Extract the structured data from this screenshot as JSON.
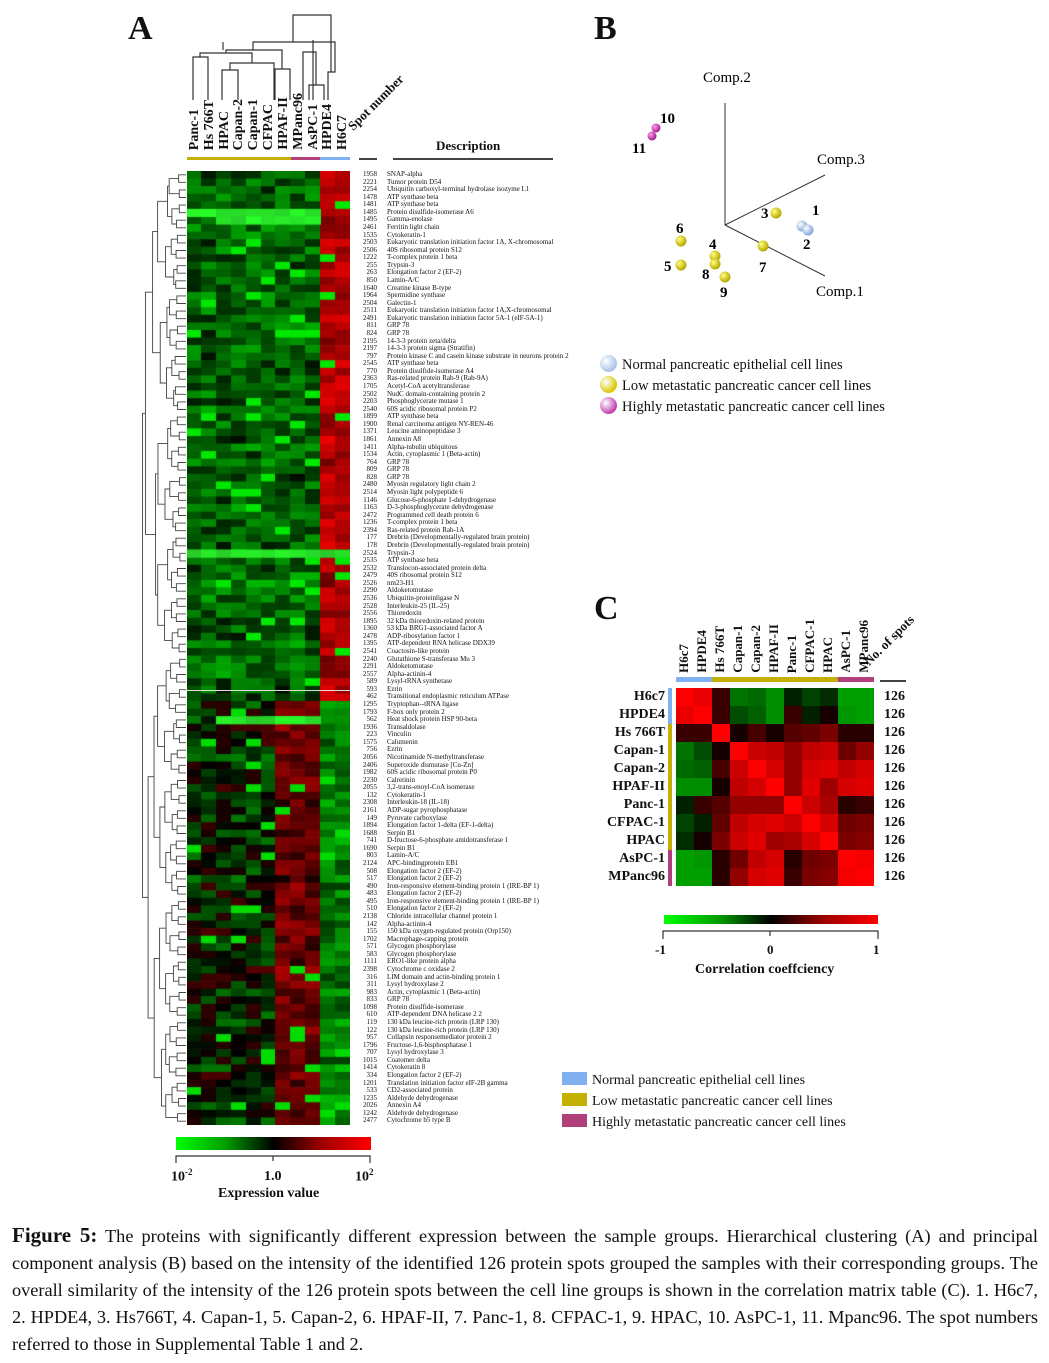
{
  "panel_a": {
    "letter": "A",
    "columns": [
      "Panc-1",
      "Hs 766T",
      "HPAC",
      "Capan-2",
      "Capan-1",
      "CFPAC",
      "HPAF-II",
      "MPanc96",
      "AsPC-1",
      "HPDE4",
      "H6C7"
    ],
    "column_groups": [
      "low",
      "low",
      "low",
      "low",
      "low",
      "low",
      "low",
      "high",
      "high",
      "normal",
      "normal"
    ],
    "spot_header": "Spot number",
    "description_header": "Description",
    "spots": [
      [
        "1958",
        "SNAP-alpha"
      ],
      [
        "2221",
        "Tumor protein D54"
      ],
      [
        "2254",
        "Ubiquitin carboxyl-terminal hydrolase isozyme L1"
      ],
      [
        "1478",
        "ATP synthase beta"
      ],
      [
        "1481",
        "ATP synthase beta"
      ],
      [
        "1485",
        "Protein disulfide-isomerase A6"
      ],
      [
        "1495",
        "Gamma-enolase"
      ],
      [
        "2461",
        "Ferritin light chain"
      ],
      [
        "1535",
        "Cytokeratin-1"
      ],
      [
        "2503",
        "Eukaryotic translation initiation factor 1A, X-chromosomal"
      ],
      [
        "2506",
        "40S ribosomal protein S12"
      ],
      [
        "1222",
        "T-complex protein 1 beta"
      ],
      [
        "255",
        "Trypsin-3"
      ],
      [
        "263",
        "Elongation factor 2 (EF-2)"
      ],
      [
        "850",
        "Lamin-A/C"
      ],
      [
        "1640",
        "Creatine kinase B-type"
      ],
      [
        "1964",
        "Spermidine synthase"
      ],
      [
        "2504",
        "Galectin-1"
      ],
      [
        "2511",
        "Eukaryotic translation initiation factor 1A,X-chromosomal"
      ],
      [
        "2491",
        "Eukaryotic translation initiation factor 5A-1 (eIF-5A-1)"
      ],
      [
        "811",
        "GRP 78"
      ],
      [
        "824",
        "GRP 78"
      ],
      [
        "2195",
        "14-3-3 protein zeta/delta"
      ],
      [
        "2197",
        "14-3-3 protein sigma (Stratifin)"
      ],
      [
        "797",
        "Protein kinase C and casein kinase substrate in neurons protein 2"
      ],
      [
        "2545",
        "ATP synthase beta"
      ],
      [
        "770",
        "Protein disulfide-isomerase A4"
      ],
      [
        "2363",
        "Ras-related protein Rab-9 (Rab-9A)"
      ],
      [
        "1705",
        "Acetyl-CoA acetyltransferase"
      ],
      [
        "2502",
        "NudC domain-containing protein 2"
      ],
      [
        "2203",
        "Phosphoglycerate mutase 1"
      ],
      [
        "2540",
        "60S acidic ribosomal protein P2"
      ],
      [
        "1899",
        "ATP synthase beta"
      ],
      [
        "1900",
        "Renal carcinoma antigen NY-REN-46"
      ],
      [
        "1371",
        "Leucine aminopeptidase 3"
      ],
      [
        "1861",
        "Annexin A8"
      ],
      [
        "1411",
        "Alpha-tubulin ubiquitous"
      ],
      [
        "1534",
        "Actin, cytoplasmic 1 (Beta-actin)"
      ],
      [
        "764",
        "GRP 78"
      ],
      [
        "809",
        "GRP 78"
      ],
      [
        "828",
        "GRP 78"
      ],
      [
        "2480",
        "Myosin regulatory light chain 2"
      ],
      [
        "2514",
        "Myosin light polypeptide 6"
      ],
      [
        "1146",
        "Glucose-6-phosphate 1-dehydrogenase"
      ],
      [
        "1163",
        "D-3-phosphoglycerate dehydrogenase"
      ],
      [
        "2472",
        "Programmed cell death protein 6"
      ],
      [
        "1236",
        "T-complex protein 1 beta"
      ],
      [
        "2394",
        "Ras-related protein Rab-1A"
      ],
      [
        "177",
        "Drebrin (Developmentally-regulated brain protein)"
      ],
      [
        "178",
        "Drebrin (Developmentally-regulated brain protein)"
      ],
      [
        "2524",
        "Trypsin-3"
      ],
      [
        "2535",
        "ATP synthase beta"
      ],
      [
        "2532",
        "Translocon-associated protein delta"
      ],
      [
        "2479",
        "40S ribosomal protein S12"
      ],
      [
        "2526",
        "nm23-H1"
      ],
      [
        "2290",
        "Aldoketomutase"
      ],
      [
        "2536",
        "Ubiquitin-proteinligase N"
      ],
      [
        "2528",
        "Interleukin-25 (IL-25)"
      ],
      [
        "2556",
        "Thioredoxin"
      ],
      [
        "1895",
        "32 kDa thioredoxin-related protein"
      ],
      [
        "1360",
        "53 kDa BRG1-associated factor A"
      ],
      [
        "2478",
        "ADP-ribosylation factor 1"
      ],
      [
        "1395",
        "ATP-dependent RNA helicase DDX39"
      ],
      [
        "2541",
        "Coactosin-like protein"
      ],
      [
        "2240",
        "Glutathione S-transferase Mu 3"
      ],
      [
        "2291",
        "Aldoketomutase"
      ],
      [
        "2557",
        "Alpha-actinin-4"
      ],
      [
        "589",
        "Lysyl-tRNA synthetase"
      ],
      [
        "593",
        "Ezrin"
      ],
      [
        "462",
        "Transitional endoplasmic reticulum ATPase"
      ],
      [
        "1295",
        "Tryptophan--tRNA ligase"
      ],
      [
        "1793",
        "F-box only protein 2"
      ],
      [
        "562",
        "Heat shock protein HSP 90-beta"
      ],
      [
        "1936",
        "Transaldolase"
      ],
      [
        "223",
        "Vinculin"
      ],
      [
        "1575",
        "Calumenin"
      ],
      [
        "756",
        "Ezrin"
      ],
      [
        "2056",
        "Nicotinamide N-methyltransferase"
      ],
      [
        "2406",
        "Superoxide dismutase [Cu-Zn]"
      ],
      [
        "1982",
        "60S acidic ribosomal protein P0"
      ],
      [
        "2230",
        "Calretinin"
      ],
      [
        "2055",
        "3,2-trans-enoyl-CoA isomerase"
      ],
      [
        "132",
        "Cytokeratin-1"
      ],
      [
        "2308",
        "Interleukin-18 (IL-18)"
      ],
      [
        "2161",
        "ADP-sugar pyrophosphatase"
      ],
      [
        "149",
        "Pyruvate carboxylase"
      ],
      [
        "1894",
        "Elongation factor 1-delta (EF-1-delta)"
      ],
      [
        "1688",
        "Serpin B1"
      ],
      [
        "741",
        "D-fructose-6-phosphate amidotransferase 1"
      ],
      [
        "1690",
        "Serpin B1"
      ],
      [
        "803",
        "Lamin-A/C"
      ],
      [
        "2124",
        "APC-bindingprotein EB1"
      ],
      [
        "508",
        "Elongation factor 2 (EF-2)"
      ],
      [
        "517",
        "Elongation factor 2 (EF-2)"
      ],
      [
        "490",
        "Iron-responsive element-binding protein 1 (IRE-BP 1)"
      ],
      [
        "483",
        "Elongation factor 2 (EF-2)"
      ],
      [
        "495",
        "Iron-responsive element-binding protein 1 (IRE-BP 1)"
      ],
      [
        "510",
        "Elongation factor 2 (EF-2)"
      ],
      [
        "2138",
        "Chloride intracellular channel protein 1"
      ],
      [
        "142",
        "Alpha-actinin-4"
      ],
      [
        "155",
        "150 kDa oxygen-regulated protein (Orp150)"
      ],
      [
        "1702",
        "Macrophage-capping protein"
      ],
      [
        "571",
        "Glycogen phosphorylase"
      ],
      [
        "583",
        "Glycogen phosphorylase"
      ],
      [
        "1111",
        "ERO1-like protein alpha"
      ],
      [
        "2398",
        "Cytochrome c oxidase 2"
      ],
      [
        "316",
        "LIM domain and actin-binding protein 1"
      ],
      [
        "311",
        "Lysyl hydroxylase 2"
      ],
      [
        "983",
        "Actin, cytoplasmic 1 (Beta-actin)"
      ],
      [
        "833",
        "GRP 78"
      ],
      [
        "1098",
        "Protein disulfide-isomerase"
      ],
      [
        "610",
        "ATP-dependent DNA helicase 2  2"
      ],
      [
        "119",
        "130 kDa leucine-rich protein (LRP 130)"
      ],
      [
        "122",
        "130 kDa leucine-rich protein (LRP 130)"
      ],
      [
        "957",
        "Collapsin responsemediator protein 2"
      ],
      [
        "1796",
        "Fructose-1,6-bisphosphatase 1"
      ],
      [
        "707",
        "Lysyl hydroxylase 3"
      ],
      [
        "1015",
        "Coatomer delta"
      ],
      [
        "1414",
        "Cytokeratin 8"
      ],
      [
        "334",
        "Elongation factor 2 (EF-2)"
      ],
      [
        "1201",
        "Translation initiation factor eIF-2B gamma"
      ],
      [
        "533",
        "CD2-associated protein"
      ],
      [
        "1235",
        "Aldehyde dehydrogenase"
      ],
      [
        "2026",
        "Annexin A4"
      ],
      [
        "1242",
        "Aldehyde dehydrogenase"
      ],
      [
        "2477",
        "Cytochrome b5 type B"
      ]
    ],
    "colorbar": {
      "min_label": "10",
      "min_exp": "-2",
      "mid_label": "1.0",
      "max_label": "10",
      "max_exp": "2",
      "title": "Expression value",
      "low_color": "#00ff00",
      "mid_color": "#000000",
      "high_color": "#ff0000"
    }
  },
  "panel_b": {
    "letter": "B",
    "axes": [
      "Comp.2",
      "Comp.3",
      "Comp.1"
    ],
    "points": [
      {
        "label": "1",
        "group": "normal"
      },
      {
        "label": "2",
        "group": "normal"
      },
      {
        "label": "3",
        "group": "low"
      },
      {
        "label": "4",
        "group": "low"
      },
      {
        "label": "5",
        "group": "low"
      },
      {
        "label": "6",
        "group": "low"
      },
      {
        "label": "7",
        "group": "low"
      },
      {
        "label": "8",
        "group": "low"
      },
      {
        "label": "9",
        "group": "low"
      },
      {
        "label": "10",
        "group": "high"
      },
      {
        "label": "11",
        "group": "high"
      }
    ],
    "legend": [
      {
        "label": "Normal pancreatic epithelial cell lines",
        "color": "#a9c4ea"
      },
      {
        "label": "Low metastatic pancreatic cancer cell lines",
        "color": "#d8c800"
      },
      {
        "label": "Highly metastatic pancreatic cancer cell lines",
        "color": "#c040b0"
      }
    ]
  },
  "panel_c": {
    "letter": "C",
    "labels": [
      "H6c7",
      "HPDE4",
      "Hs 766T",
      "Capan-1",
      "Capan-2",
      "HPAF-II",
      "Panc-1",
      "CFPAC-1",
      "HPAC",
      "AsPC-1",
      "MPanc96"
    ],
    "groups": [
      "normal",
      "normal",
      "low",
      "low",
      "low",
      "low",
      "low",
      "low",
      "low",
      "high",
      "high"
    ],
    "count_header": "No. of spots",
    "counts": [
      "126",
      "126",
      "126",
      "126",
      "126",
      "126",
      "126",
      "126",
      "126",
      "126",
      "126"
    ],
    "matrix": [
      [
        1.0,
        0.9,
        0.15,
        -0.5,
        -0.45,
        -0.65,
        -0.1,
        -0.25,
        -0.15,
        -0.75,
        -0.75
      ],
      [
        0.9,
        1.0,
        0.15,
        -0.3,
        -0.4,
        -0.65,
        0.15,
        -0.1,
        0.05,
        -0.7,
        -0.75
      ],
      [
        0.15,
        0.15,
        1.0,
        0.05,
        0.2,
        0.05,
        0.25,
        0.3,
        0.4,
        0.1,
        0.1
      ],
      [
        -0.5,
        -0.3,
        0.05,
        1.0,
        0.75,
        0.7,
        0.5,
        0.7,
        0.75,
        0.35,
        0.5
      ],
      [
        -0.45,
        -0.4,
        0.2,
        0.75,
        1.0,
        0.8,
        0.5,
        0.8,
        0.85,
        0.7,
        0.8
      ],
      [
        -0.65,
        -0.65,
        0.05,
        0.7,
        0.8,
        1.0,
        0.5,
        0.85,
        0.55,
        0.8,
        0.85
      ],
      [
        -0.1,
        0.15,
        0.25,
        0.5,
        0.5,
        0.5,
        1.0,
        0.75,
        0.6,
        0.1,
        0.15
      ],
      [
        -0.25,
        -0.1,
        0.3,
        0.7,
        0.8,
        0.85,
        0.75,
        1.0,
        0.8,
        0.35,
        0.4
      ],
      [
        -0.15,
        0.05,
        0.4,
        0.75,
        0.85,
        0.55,
        0.6,
        0.8,
        1.0,
        0.4,
        0.45
      ],
      [
        -0.75,
        -0.7,
        0.1,
        0.35,
        0.7,
        0.8,
        0.1,
        0.35,
        0.4,
        1.0,
        0.95
      ],
      [
        -0.75,
        -0.75,
        0.1,
        0.5,
        0.8,
        0.85,
        0.15,
        0.4,
        0.45,
        0.95,
        1.0
      ]
    ],
    "colorbar": {
      "min_label": "-1",
      "mid_label": "0",
      "max_label": "1",
      "title": "Correlation coeffciency"
    },
    "legend": [
      {
        "label": "Normal pancreatic epithelial cell lines",
        "color": "#7fb0f0"
      },
      {
        "label": "Low metastatic pancreatic cancer cell lines",
        "color": "#c4b000"
      },
      {
        "label": "Highly metastatic pancreatic cancer cell lines",
        "color": "#b0407a"
      }
    ]
  },
  "group_colors": {
    "normal": "#7fb0f0",
    "low": "#c4b000",
    "high": "#b0407a"
  },
  "caption": {
    "lead": "Figure 5:",
    "text": " The proteins with significantly different expression between the sample groups. Hierarchical clustering (A) and principal component analysis (B) based on the intensity of the identified 126 protein spots grouped the samples with their corresponding groups. The overall similarity of the intensity of the 126 protein spots between the cell line groups is shown in the correlation matrix table (C). 1. H6c7, 2. HPDE4, 3. Hs766T, 4. Capan-1, 5. Capan-2, 6. HPAF-II, 7. Panc-1, 8. CFPAC-1, 9. HPAC, 10. AsPC-1, 11. Mpanc96. The spot numbers referred to those in Supplemental Table 1 and 2."
  }
}
